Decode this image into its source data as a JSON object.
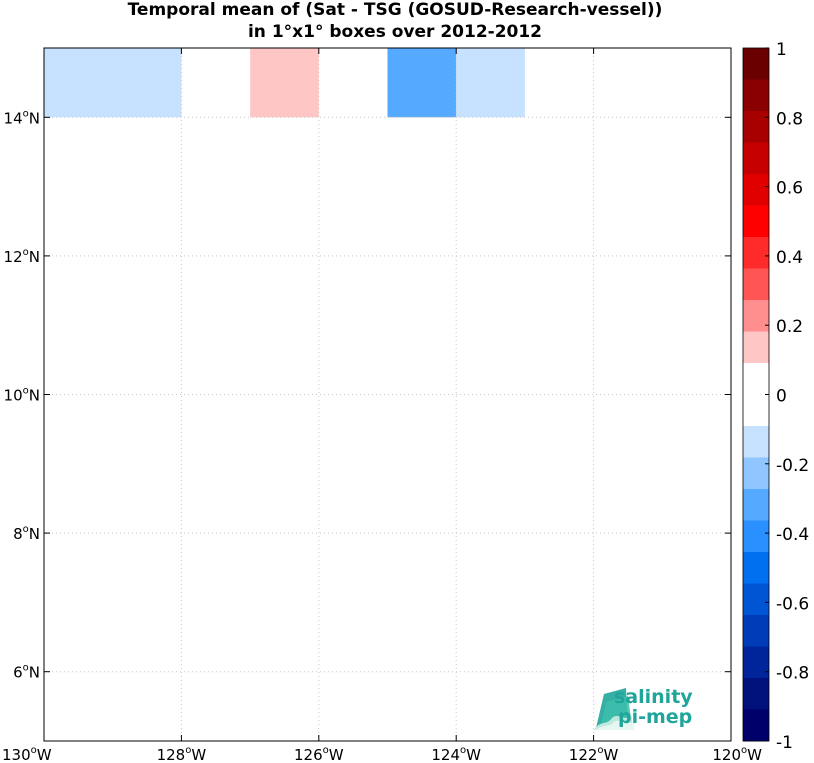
{
  "chart_data": {
    "type": "heatmap",
    "title_line1": "Temporal mean of (Sat - TSG (GOSUD-Research-vessel))",
    "title_line2": "in 1°x1° boxes over 2012-2012",
    "xlim": [
      -130,
      -120
    ],
    "ylim": [
      5,
      15
    ],
    "x_ticks": [
      -130,
      -128,
      -126,
      -124,
      -122,
      -120
    ],
    "x_tick_labels": [
      "130°W",
      "128°W",
      "126°W",
      "124°W",
      "122°W",
      "120°W"
    ],
    "y_ticks": [
      6,
      8,
      10,
      12,
      14
    ],
    "y_tick_labels": [
      "6°N",
      "8°N",
      "10°N",
      "12°N",
      "14°N"
    ],
    "grid": true,
    "cells": [
      {
        "lon": [
          -130,
          -128
        ],
        "lat": [
          14,
          15
        ],
        "value": -0.15
      },
      {
        "lon": [
          -127,
          -126
        ],
        "lat": [
          14,
          15
        ],
        "value": 0.15
      },
      {
        "lon": [
          -125,
          -124
        ],
        "lat": [
          14,
          15
        ],
        "value": -0.35
      },
      {
        "lon": [
          -124,
          -123
        ],
        "lat": [
          14,
          15
        ],
        "value": -0.15
      }
    ],
    "colorbar": {
      "range": [
        -1,
        1
      ],
      "tick_values": [
        1,
        0.8,
        0.6,
        0.4,
        0.2,
        0,
        -0.2,
        -0.4,
        -0.6,
        -0.8,
        -1
      ],
      "tick_labels": [
        "1",
        "0.8",
        "0.6",
        "0.4",
        "0.2",
        "0",
        "-0.2",
        "-0.4",
        "-0.6",
        "-0.8",
        "-1"
      ],
      "colors_top_to_bottom": [
        "#6b0000",
        "#8a0000",
        "#a80000",
        "#c60000",
        "#e00000",
        "#ff0000",
        "#ff2a2a",
        "#ff5555",
        "#ff8f8f",
        "#ffc6c6",
        "#ffffff",
        "#ffffff",
        "#c6e2ff",
        "#8fc6ff",
        "#55aaff",
        "#2a8fff",
        "#0070f0",
        "#0055d5",
        "#003cb8",
        "#00259a",
        "#00117c",
        "#00006b"
      ]
    }
  },
  "logo": {
    "line1": "salinity",
    "line2": "pi-mep",
    "color": "#1fa59a"
  }
}
